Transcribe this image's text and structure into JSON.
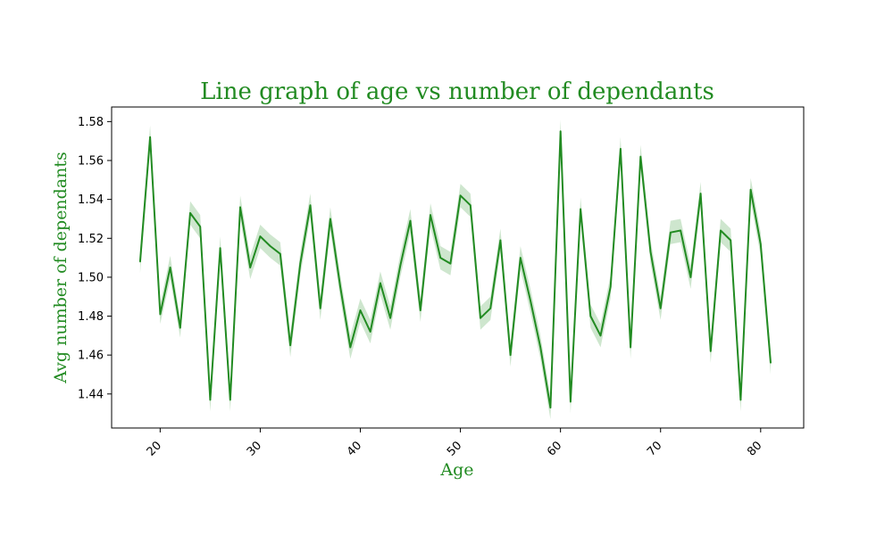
{
  "chart_data": {
    "type": "line",
    "title": "Line graph of age vs number of dependants",
    "xlabel": "Age",
    "ylabel": "Avg number of dependants",
    "xlim": [
      15.15,
      84.3
    ],
    "ylim": [
      1.4225,
      1.5875
    ],
    "x_ticks": [
      20,
      30,
      40,
      50,
      60,
      70,
      80
    ],
    "y_ticks": [
      1.44,
      1.46,
      1.48,
      1.5,
      1.52,
      1.54,
      1.56,
      1.58
    ],
    "grid": false,
    "legend": "none",
    "series": [
      {
        "x": [
          18,
          19,
          20,
          21,
          22,
          23,
          24,
          25,
          26,
          27,
          28,
          29,
          30,
          31,
          32,
          33,
          34,
          35,
          36,
          37,
          38,
          39,
          40,
          41,
          42,
          43,
          44,
          45,
          46,
          47,
          48,
          49,
          50,
          51,
          52,
          53,
          54,
          55,
          56,
          57,
          58,
          59,
          60,
          61,
          62,
          63,
          64,
          65,
          66,
          67,
          68,
          69,
          70,
          71,
          72,
          73,
          74,
          75,
          76,
          77,
          78,
          79,
          80,
          81
        ],
        "values": [
          1.508,
          1.572,
          1.481,
          1.505,
          1.474,
          1.533,
          1.526,
          1.437,
          1.515,
          1.437,
          1.536,
          1.505,
          1.521,
          1.516,
          1.512,
          1.465,
          1.507,
          1.537,
          1.484,
          1.53,
          1.495,
          1.464,
          1.483,
          1.472,
          1.497,
          1.479,
          1.506,
          1.529,
          1.483,
          1.532,
          1.51,
          1.507,
          1.542,
          1.537,
          1.479,
          1.484,
          1.519,
          1.46,
          1.51,
          1.488,
          1.464,
          1.433,
          1.575,
          1.436,
          1.535,
          1.48,
          1.47,
          1.495,
          1.566,
          1.464,
          1.562,
          1.513,
          1.484,
          1.523,
          1.524,
          1.5,
          1.543,
          1.462,
          1.524,
          1.519,
          1.437,
          1.545,
          1.517,
          1.456
        ],
        "band": [
          0.006,
          0.006,
          0.005,
          0.006,
          0.005,
          0.006,
          0.006,
          0.006,
          0.006,
          0.006,
          0.006,
          0.006,
          0.006,
          0.006,
          0.006,
          0.006,
          0.006,
          0.006,
          0.006,
          0.006,
          0.006,
          0.006,
          0.006,
          0.006,
          0.006,
          0.006,
          0.006,
          0.006,
          0.006,
          0.006,
          0.006,
          0.006,
          0.006,
          0.006,
          0.006,
          0.006,
          0.006,
          0.006,
          0.006,
          0.006,
          0.006,
          0.006,
          0.006,
          0.006,
          0.006,
          0.006,
          0.006,
          0.006,
          0.006,
          0.006,
          0.006,
          0.006,
          0.006,
          0.006,
          0.006,
          0.006,
          0.006,
          0.006,
          0.006,
          0.006,
          0.006,
          0.006,
          0.006,
          0.006
        ]
      }
    ],
    "colors": {
      "line": "#228b22",
      "band": "#228b22",
      "title": "#228b22",
      "axis_labels": "#228b22"
    }
  }
}
